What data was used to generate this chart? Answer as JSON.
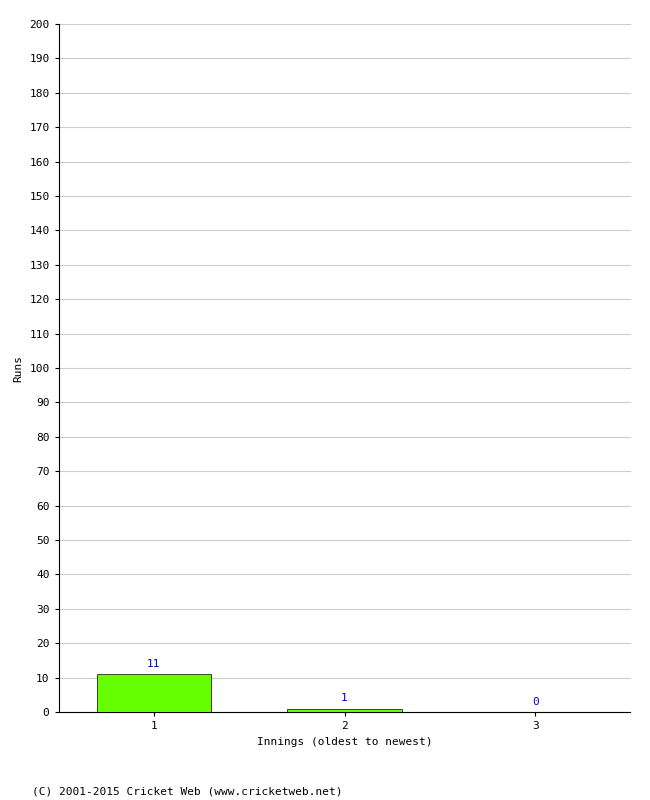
{
  "categories": [
    1,
    2,
    3
  ],
  "values": [
    11,
    1,
    0
  ],
  "bar_color": "#66ff00",
  "bar_edge_color": "#000000",
  "xlabel": "Innings (oldest to newest)",
  "ylabel": "Runs",
  "ylim": [
    0,
    200
  ],
  "yticks": [
    0,
    10,
    20,
    30,
    40,
    50,
    60,
    70,
    80,
    90,
    100,
    110,
    120,
    130,
    140,
    150,
    160,
    170,
    180,
    190,
    200
  ],
  "annotation_color": "#0000cc",
  "annotation_fontsize": 8,
  "axis_label_fontsize": 8,
  "tick_fontsize": 8,
  "footer_text": "(C) 2001-2015 Cricket Web (www.cricketweb.net)",
  "footer_fontsize": 8,
  "background_color": "#ffffff",
  "grid_color": "#cccccc",
  "bar_width": 0.6
}
